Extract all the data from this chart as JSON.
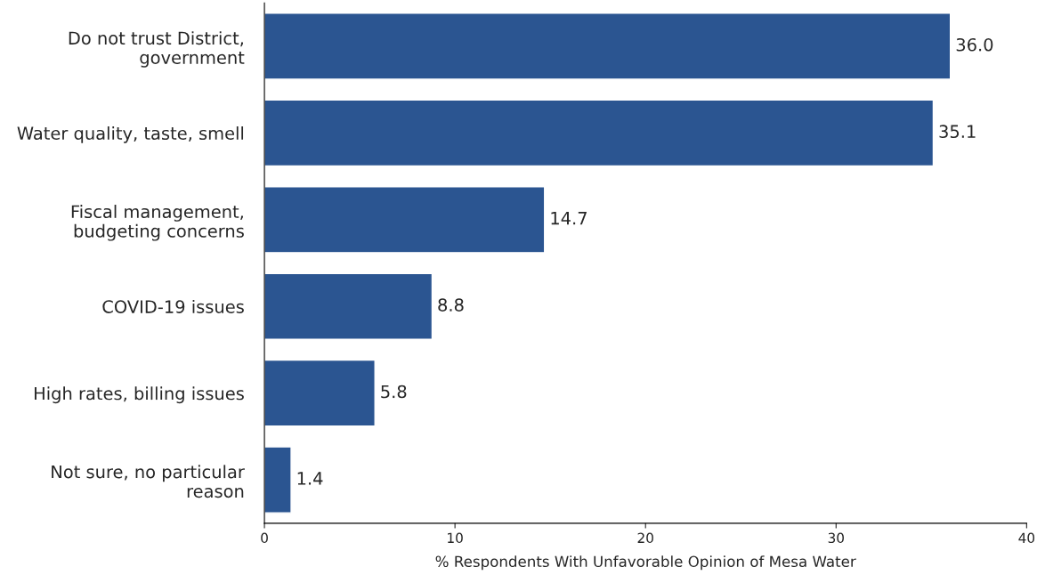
{
  "chart_data": {
    "type": "bar",
    "orientation": "horizontal",
    "categories": [
      "Do not trust District,\ngovernment",
      "Water quality, taste, smell",
      "Fiscal management,\nbudgeting concerns",
      "COVID-19 issues",
      "High rates, billing issues",
      "Not sure, no particular\nreason"
    ],
    "values": [
      36.0,
      35.1,
      14.7,
      8.8,
      5.8,
      1.4
    ],
    "value_labels": [
      "36.0",
      "35.1",
      "14.7",
      "8.8",
      "5.8",
      "1.4"
    ],
    "color": "#2b5591",
    "xlabel": "% Respondents With Unfavorable Opinion of Mesa Water",
    "xlim": [
      0,
      40
    ],
    "xticks": [
      0,
      10,
      20,
      30,
      40
    ],
    "grid": false
  }
}
